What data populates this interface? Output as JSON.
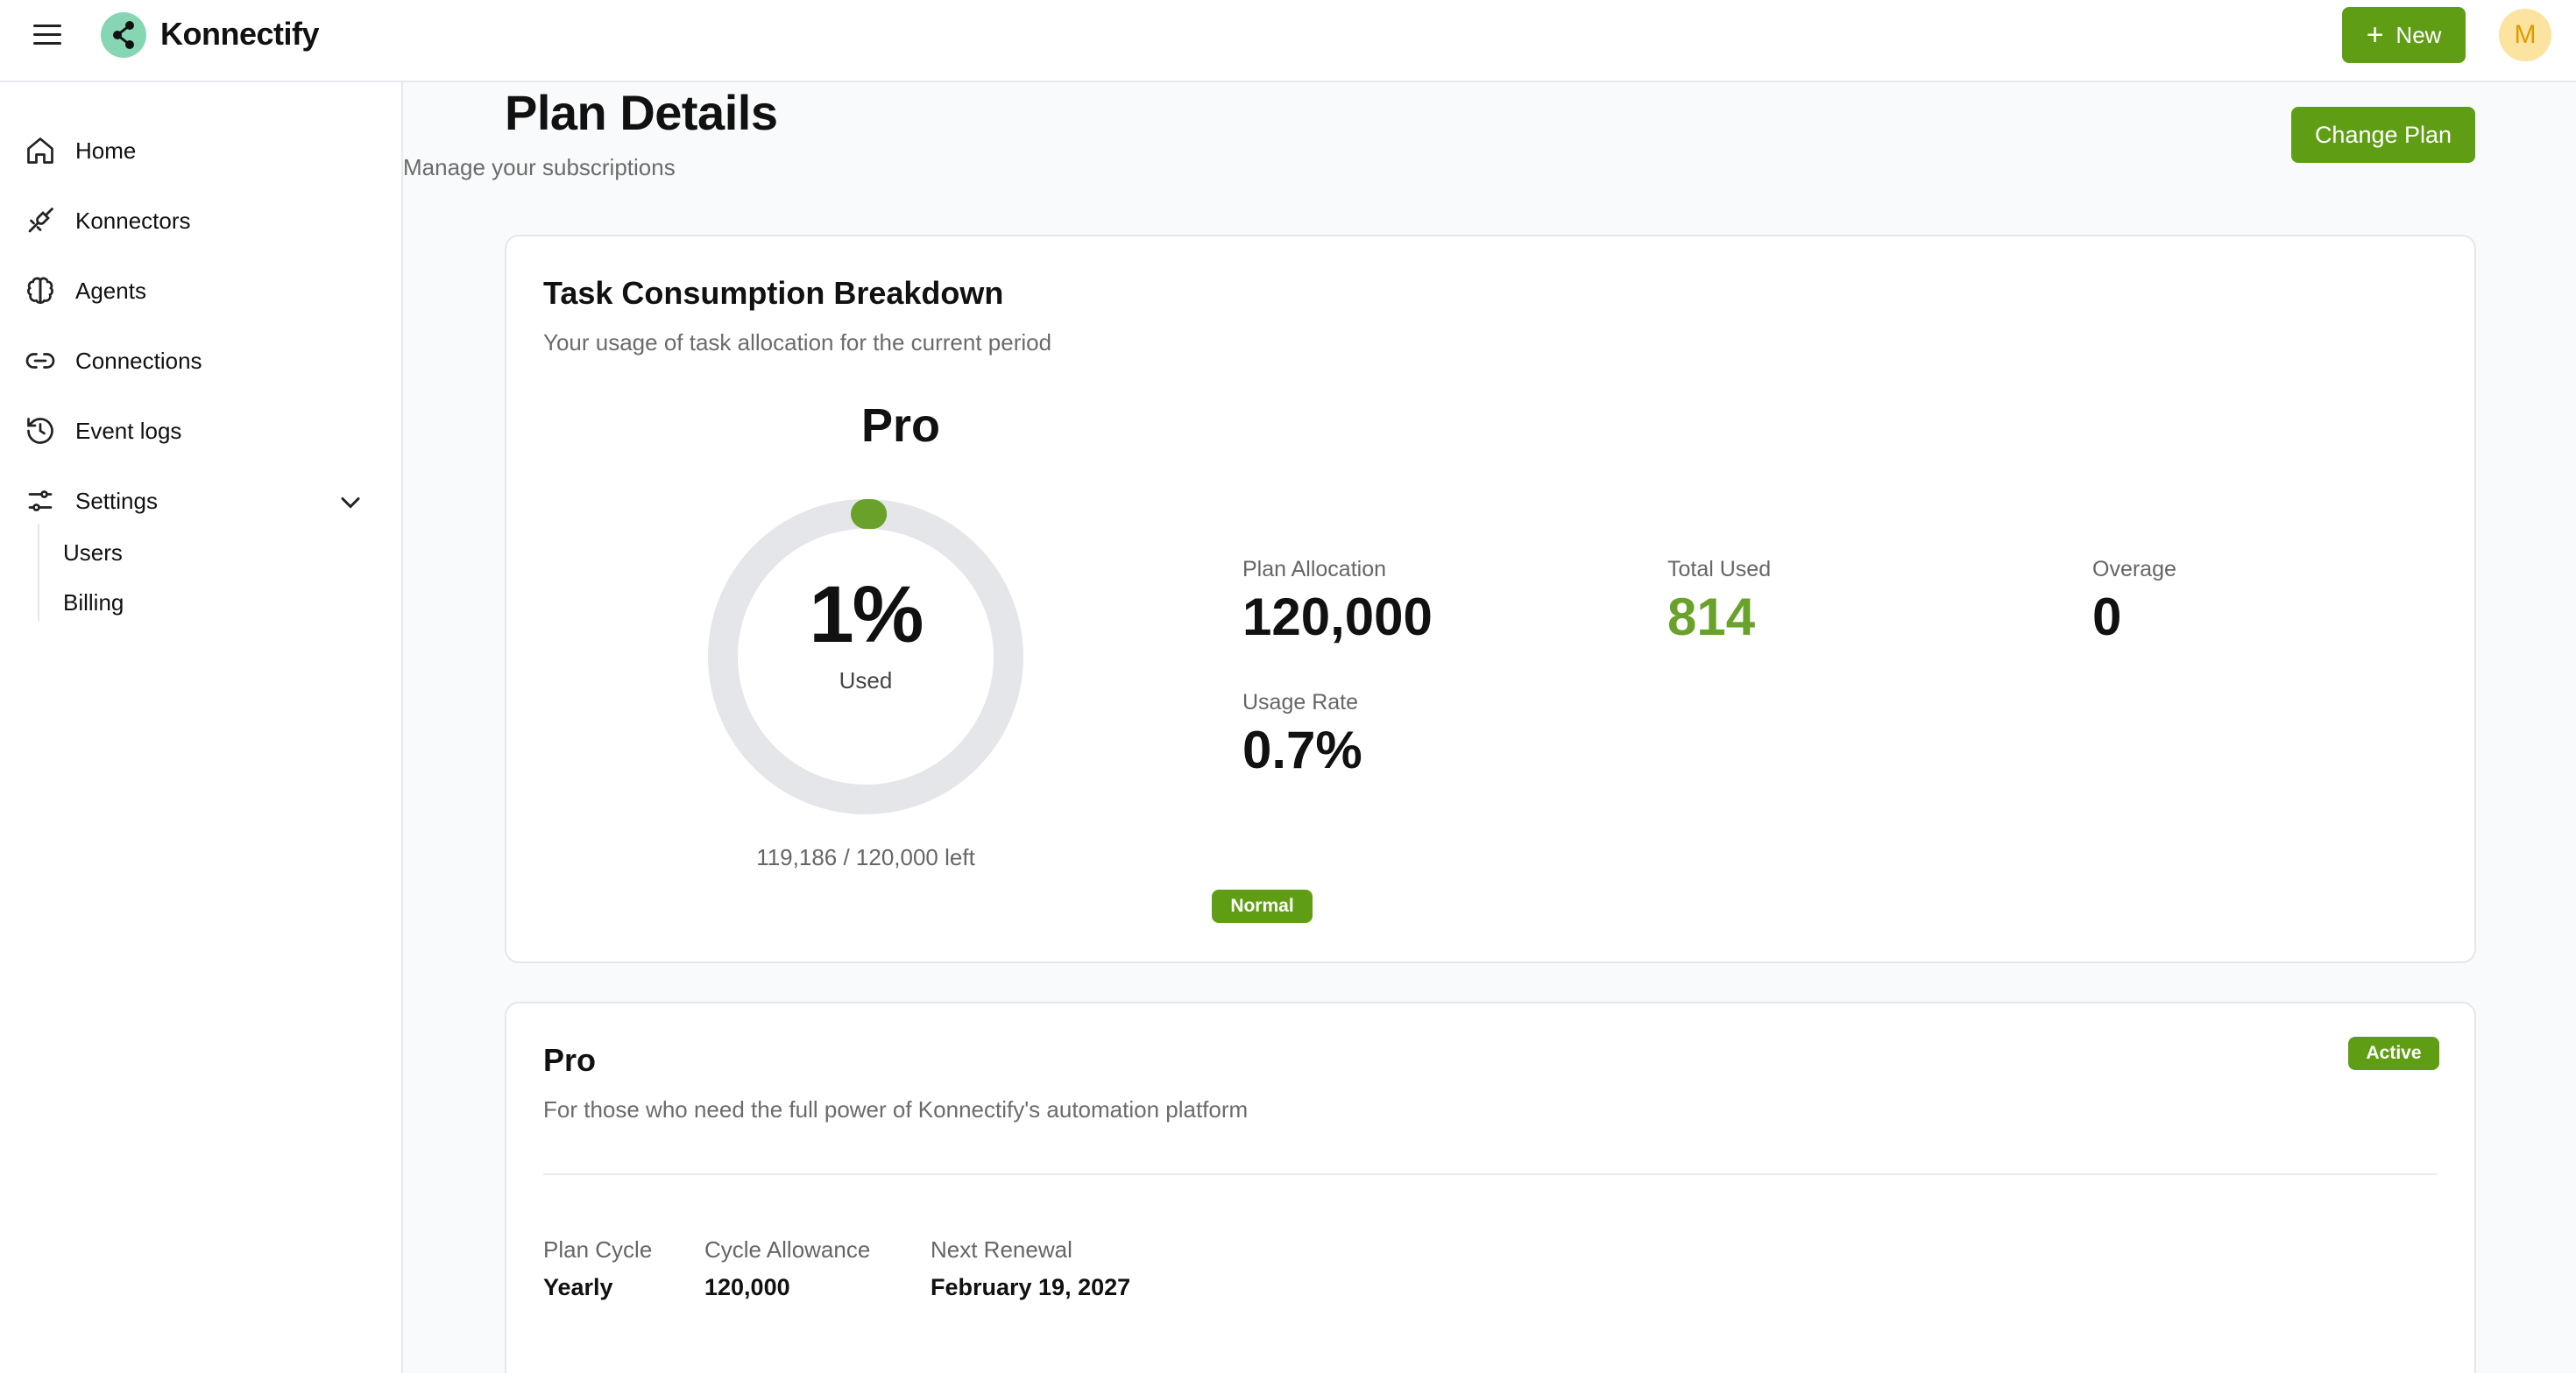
{
  "brand": {
    "name": "Konnectify",
    "logo_color": "#86d6b4",
    "accent": "#5f9e14"
  },
  "header": {
    "new_button_label": "New",
    "avatar_initial": "M"
  },
  "sidebar": {
    "items": [
      {
        "label": "Home",
        "icon": "home-icon"
      },
      {
        "label": "Konnectors",
        "icon": "plug-icon"
      },
      {
        "label": "Agents",
        "icon": "brain-icon"
      },
      {
        "label": "Connections",
        "icon": "link-icon"
      },
      {
        "label": "Event logs",
        "icon": "history-icon"
      },
      {
        "label": "Settings",
        "icon": "sliders-icon",
        "expanded": true
      }
    ],
    "settings_children": [
      "Users",
      "Billing"
    ]
  },
  "page": {
    "title": "Plan Details",
    "subtitle": "Manage your subscriptions",
    "change_plan_label": "Change Plan"
  },
  "consumption": {
    "title": "Task Consumption Breakdown",
    "description": "Your usage of task allocation for the current period",
    "plan_name": "Pro",
    "gauge_percent": "1%",
    "gauge_fraction_used": 0.007,
    "gauge_caption": "Used",
    "remaining_text": "119,186 / 120,000 left",
    "status": "Normal",
    "stats": {
      "plan_allocation": {
        "label": "Plan Allocation",
        "value": "120,000"
      },
      "total_used": {
        "label": "Total Used",
        "value": "814"
      },
      "overage": {
        "label": "Overage",
        "value": "0"
      },
      "usage_rate": {
        "label": "Usage Rate",
        "value": "0.7%"
      }
    }
  },
  "plan": {
    "name": "Pro",
    "description": "For those who need the full power of Konnectify's automation platform",
    "status": "Active",
    "details": [
      {
        "label": "Plan Cycle",
        "value": "Yearly"
      },
      {
        "label": "Cycle Allowance",
        "value": "120,000"
      },
      {
        "label": "Next Renewal",
        "value": "February 19, 2027"
      }
    ]
  }
}
